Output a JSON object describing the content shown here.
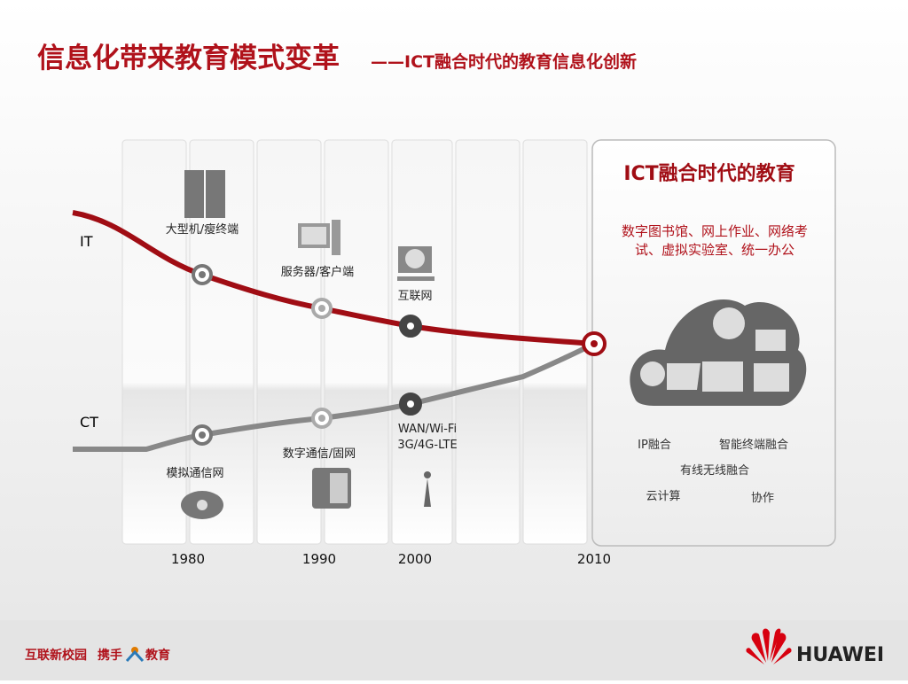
{
  "header": {
    "title": "信息化带来教育模式变革",
    "subtitle": "——ICT融合时代的教育信息化创新"
  },
  "lines": {
    "it": "IT",
    "ct": "CT"
  },
  "it_milestones": [
    "大型机/瘦终端",
    "服务器/客户端",
    "互联网"
  ],
  "ct_milestones": [
    "模拟通信网",
    "数字通信/固网",
    [
      "WAN/Wi-Fi",
      "3G/4G-LTE"
    ]
  ],
  "years": [
    "1980",
    "1990",
    "2000",
    "2010"
  ],
  "panel": {
    "title": "ICT融合时代的教育",
    "description": [
      "数字图书馆、网上作业、网络考",
      "试、虚拟实验室、统一办公"
    ],
    "features": [
      "IP融合",
      "智能终端融合",
      "有线无线融合",
      "云计算",
      "协作"
    ]
  },
  "footer": {
    "slogan_1": "互联新校园",
    "slogan_2": "携手",
    "slogan_3": "教育",
    "brand": "HUAWEI"
  }
}
